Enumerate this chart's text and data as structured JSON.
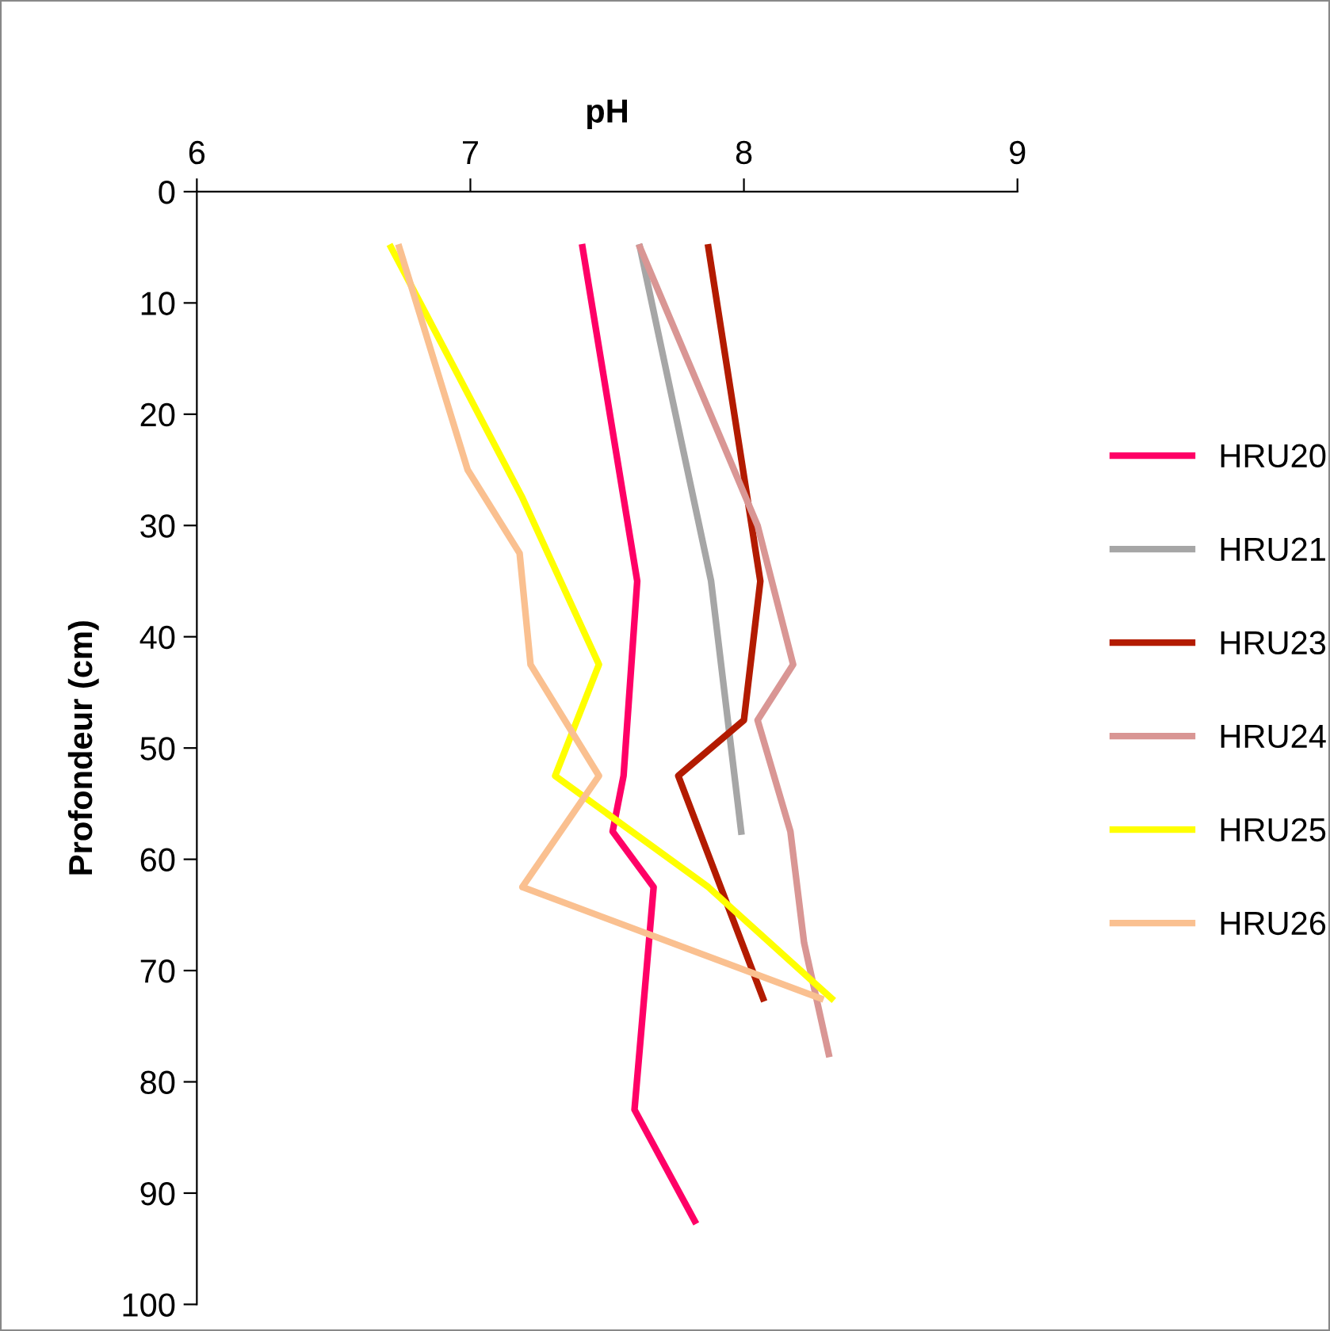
{
  "chart_data": {
    "type": "line",
    "xlabel": "pH",
    "ylabel": "Profondeur (cm)",
    "xlim": [
      6,
      9
    ],
    "xticks": [
      6,
      7,
      8,
      9
    ],
    "ylim": [
      100,
      0
    ],
    "yticks": [
      0,
      10,
      20,
      30,
      40,
      50,
      60,
      70,
      80,
      90,
      100
    ],
    "grid": false,
    "legend": "right",
    "marker": "none",
    "line_style": "solid",
    "series": [
      {
        "name": "HRU20",
        "color": "#ff0066",
        "x": [
          7.41,
          7.61,
          7.56,
          7.52,
          7.67,
          7.6,
          7.82
        ],
        "values": [
          5,
          35,
          52.5,
          57.5,
          62.5,
          82.5,
          92.5
        ]
      },
      {
        "name": "HRU21",
        "color": "#a6a6a6",
        "x": [
          7.62,
          7.88,
          7.99
        ],
        "values": [
          5,
          35,
          57.5
        ]
      },
      {
        "name": "HRU23",
        "color": "#b31b00",
        "x": [
          7.87,
          8.06,
          8.0,
          7.76,
          8.07
        ],
        "values": [
          5,
          35,
          47.5,
          52.5,
          72.5
        ]
      },
      {
        "name": "HRU24",
        "color": "#d99694",
        "x": [
          7.62,
          8.05,
          8.18,
          8.05,
          8.17,
          8.22,
          8.31
        ],
        "values": [
          5,
          30,
          42.5,
          47.5,
          57.5,
          67.5,
          77.5
        ]
      },
      {
        "name": "HRU25",
        "color": "#ffff00",
        "x": [
          6.71,
          7.19,
          7.47,
          7.31,
          7.87,
          8.32
        ],
        "values": [
          5,
          27.5,
          42.5,
          52.5,
          62.5,
          72.5
        ]
      },
      {
        "name": "HRU26",
        "color": "#fac090",
        "x": [
          6.74,
          6.99,
          7.18,
          7.22,
          7.47,
          7.19,
          8.28
        ],
        "values": [
          5,
          25,
          32.5,
          42.5,
          52.5,
          62.5,
          72.5
        ]
      }
    ]
  }
}
